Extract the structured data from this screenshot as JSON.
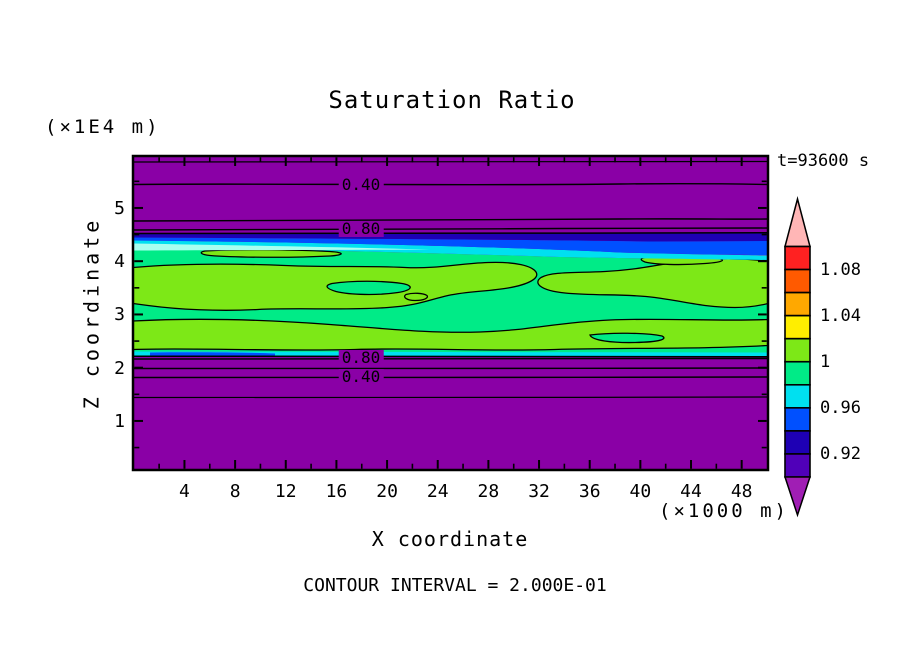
{
  "title": "Saturation Ratio",
  "time_label": "t=93600 s",
  "footer": "CONTOUR INTERVAL = 2.000E-01",
  "y_axis": {
    "label": "Z coordinate",
    "unit": "(×1E4 m)",
    "tick_labels": [
      "1",
      "2",
      "3",
      "4",
      "5"
    ],
    "tick_values": [
      1,
      2,
      3,
      4,
      5
    ],
    "minor_tick_values": [
      0.5,
      1.5,
      2.5,
      3.5,
      4.5,
      5.5
    ]
  },
  "x_axis": {
    "label": "X coordinate",
    "unit": "(×1000 m)",
    "tick_labels": [
      "4",
      "8",
      "12",
      "16",
      "20",
      "24",
      "28",
      "32",
      "36",
      "40",
      "44",
      "48"
    ],
    "tick_values": [
      4,
      8,
      12,
      16,
      20,
      24,
      28,
      32,
      36,
      40,
      44,
      48
    ],
    "minor_tick_values": [
      2,
      6,
      10,
      14,
      18,
      22,
      26,
      30,
      34,
      38,
      42,
      46,
      50
    ]
  },
  "contour_labels": {
    "top_040": "0.40",
    "top_080": "0.80",
    "bottom_080": "0.80",
    "bottom_040": "0.40"
  },
  "colorbar": {
    "segments": [
      "#FF2121",
      "#FF5A00",
      "#FFA800",
      "#FFEE00",
      "#7DE817",
      "#00EB87",
      "#00E0F0",
      "#0050FF",
      "#1E00B4",
      "#5000B9"
    ],
    "over_color": "#FFB6B6",
    "under_color": "#A01EB4",
    "labels": [
      {
        "text": "1.08",
        "boundary_index": 1
      },
      {
        "text": "1.04",
        "boundary_index": 3
      },
      {
        "text": "1",
        "boundary_index": 5
      },
      {
        "text": "0.96",
        "boundary_index": 7
      },
      {
        "text": "0.92",
        "boundary_index": 9
      }
    ]
  },
  "palette": {
    "purple": "#8A00A6",
    "navy": "#1E00B4",
    "blue": "#0050FF",
    "cyan": "#00E0F0",
    "pale_cyan": "#A8FFF0",
    "spring_green": "#00EB87",
    "chartreuse": "#7DE817",
    "black": "#000000"
  },
  "chart_data": {
    "type": "heatmap",
    "subtype": "filled_contour",
    "title": "Saturation Ratio",
    "xlabel": "X coordinate",
    "x_unit_scale": "(×1000 m)",
    "ylabel": "Z coordinate",
    "y_unit_scale": "(×1E4 m)",
    "xlim": [
      0,
      50
    ],
    "ylim": [
      0,
      5.9
    ],
    "x_ticks": [
      4,
      8,
      12,
      16,
      20,
      24,
      28,
      32,
      36,
      40,
      44,
      48
    ],
    "y_ticks": [
      1,
      2,
      3,
      4,
      5
    ],
    "time_annotation": "t=93600 s",
    "contour_interval": 0.2,
    "contour_interval_label": "CONTOUR INTERVAL = 2.000E-01",
    "labeled_line_contours": [
      {
        "value": 0.4,
        "location": "upper purple region, z ≈ 4.85 ×1E4 m"
      },
      {
        "value": 0.8,
        "location": "upper purple region, z ≈ 4.60 ×1E4 m"
      },
      {
        "value": 0.8,
        "location": "lower purple region, z ≈ 2.18 ×1E4 m"
      },
      {
        "value": 0.4,
        "location": "lower purple region, z ≈ 1.82 ×1E4 m"
      }
    ],
    "colorbar_levels": {
      "range": [
        0.9,
        1.1
      ],
      "step": 0.02,
      "tick_labels": [
        "1.08",
        "1.04",
        "1",
        "0.96",
        "0.92"
      ],
      "colors_top_to_bottom": [
        "#FF2121",
        "#FF5A00",
        "#FFA800",
        "#FFEE00",
        "#7DE817",
        "#00EB87",
        "#00E0F0",
        "#0050FF",
        "#1E00B4",
        "#5000B9"
      ],
      "over_arrow_color": "#FFB6B6",
      "under_arrow_color": "#A01EB4"
    },
    "field_summary": [
      {
        "region": "z above ≈4.6 ×1E4 m",
        "value": "S < 0.9, purple background with line contours 0.80, 0.60, 0.40, 0.20"
      },
      {
        "region": "z ≈ 4.3–4.6 ×1E4 m",
        "value": "thin navy/blue/cyan bands, S rising 0.90 → 0.98, blue thicker toward x = 50"
      },
      {
        "region": "z ≈ 2.2–4.3 ×1E4 m",
        "value": "saturated layer S ≈ 0.98–1.02: spring-green field with black-outlined chartreuse (S > 1) elongated patches"
      },
      {
        "region": "z below ≈2.15 ×1E4 m",
        "value": "S < 0.9, purple background with line contours 0.80, 0.60, 0.40, 0.20"
      }
    ]
  }
}
